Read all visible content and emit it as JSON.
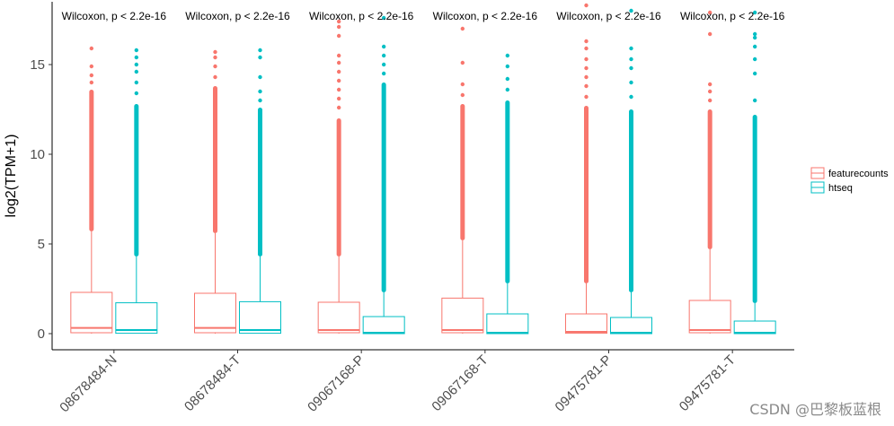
{
  "chart_data": {
    "type": "boxplot",
    "ylabel": "log2(TPM+1)",
    "xlabel": "",
    "ylim": [
      -0.9,
      18.5
    ],
    "yticks": [
      0,
      5,
      10,
      15
    ],
    "grid": false,
    "legend_position": "right",
    "categories": [
      "08678484-N",
      "08678484-T",
      "09067168-P",
      "09067168-T",
      "09475781-P",
      "09475781-T"
    ],
    "annotations": [
      "Wilcoxon, p < 2.2e-16",
      "Wilcoxon, p < 2.2e-16",
      "Wilcoxon, p < 2.2e-16",
      "Wilcoxon, p < 2.2e-16",
      "Wilcoxon, p < 2.2e-16",
      "Wilcoxon, p < 2.2e-16"
    ],
    "series": [
      {
        "name": "featurecounts",
        "color": "#F8766D",
        "boxes": [
          {
            "q1": 0.05,
            "median": 0.32,
            "q3": 2.3,
            "whisker_low": 0,
            "whisker_high": 5.7,
            "outlier_dense_top": 13.6,
            "outliers_sparse": [
              14.0,
              14.4,
              14.9,
              15.9
            ]
          },
          {
            "q1": 0.05,
            "median": 0.32,
            "q3": 2.25,
            "whisker_low": 0,
            "whisker_high": 5.6,
            "outlier_dense_top": 13.8,
            "outliers_sparse": [
              14.3,
              14.9,
              15.4,
              15.7
            ]
          },
          {
            "q1": 0.05,
            "median": 0.2,
            "q3": 1.75,
            "whisker_low": 0,
            "whisker_high": 4.3,
            "outlier_dense_top": 12.0,
            "outliers_sparse": [
              12.6,
              13.1,
              13.6,
              14.1,
              14.6,
              15.1,
              15.5,
              16.6,
              17.1,
              17.4
            ]
          },
          {
            "q1": 0.05,
            "median": 0.2,
            "q3": 1.98,
            "whisker_low": 0,
            "whisker_high": 5.2,
            "outlier_dense_top": 12.8,
            "outliers_sparse": [
              13.3,
              13.9,
              15.1,
              17.0
            ]
          },
          {
            "q1": 0.02,
            "median": 0.1,
            "q3": 1.1,
            "whisker_low": 0,
            "whisker_high": 2.8,
            "outlier_dense_top": 12.7,
            "outliers_sparse": [
              13.2,
              13.8,
              14.3,
              14.8,
              15.3,
              15.9,
              16.3,
              18.3
            ]
          },
          {
            "q1": 0.05,
            "median": 0.2,
            "q3": 1.85,
            "whisker_low": 0,
            "whisker_high": 4.7,
            "outlier_dense_top": 12.5,
            "outliers_sparse": [
              13.0,
              13.5,
              13.9,
              16.7,
              17.9
            ]
          }
        ]
      },
      {
        "name": "htseq",
        "color": "#00BFC4",
        "boxes": [
          {
            "q1": 0.02,
            "median": 0.2,
            "q3": 1.72,
            "whisker_low": 0,
            "whisker_high": 4.3,
            "outlier_dense_top": 12.8,
            "outliers_sparse": [
              13.4,
              14.0,
              14.6,
              15.0,
              15.4,
              15.8
            ]
          },
          {
            "q1": 0.02,
            "median": 0.2,
            "q3": 1.78,
            "whisker_low": 0,
            "whisker_high": 4.3,
            "outlier_dense_top": 12.6,
            "outliers_sparse": [
              13.0,
              13.5,
              14.3,
              15.4,
              15.8
            ]
          },
          {
            "q1": 0.0,
            "median": 0.05,
            "q3": 0.95,
            "whisker_low": 0,
            "whisker_high": 2.3,
            "outlier_dense_top": 14.0,
            "outliers_sparse": [
              14.5,
              15.0,
              15.5,
              16.0,
              17.6
            ]
          },
          {
            "q1": 0.0,
            "median": 0.05,
            "q3": 1.1,
            "whisker_low": 0,
            "whisker_high": 2.8,
            "outlier_dense_top": 13.0,
            "outliers_sparse": [
              13.6,
              14.2,
              14.9,
              15.5
            ]
          },
          {
            "q1": 0.0,
            "median": 0.05,
            "q3": 0.9,
            "whisker_low": 0,
            "whisker_high": 2.3,
            "outlier_dense_top": 12.5,
            "outliers_sparse": [
              13.2,
              14.0,
              14.8,
              15.3,
              15.9,
              18.0
            ]
          },
          {
            "q1": 0.0,
            "median": 0.05,
            "q3": 0.7,
            "whisker_low": 0,
            "whisker_high": 1.7,
            "outlier_dense_top": 12.2,
            "outliers_sparse": [
              13.0,
              14.5,
              15.3,
              16.0,
              16.5,
              16.7,
              17.9
            ]
          }
        ]
      }
    ]
  },
  "watermark": "CSDN @巴黎板蓝根"
}
